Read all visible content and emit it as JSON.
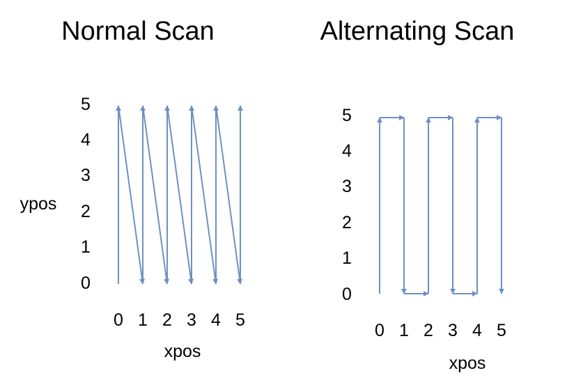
{
  "colors": {
    "arrow": "#6f90c0",
    "text": "#000000",
    "background": "#ffffff"
  },
  "panels": [
    {
      "title": "Normal Scan",
      "x_ticks": [
        "0",
        "1",
        "2",
        "3",
        "4",
        "5"
      ],
      "y_ticks": [
        "0",
        "1",
        "2",
        "3",
        "4",
        "5"
      ],
      "xlabel": "xpos",
      "ylabel": "ypos",
      "path": [
        [
          0,
          0
        ],
        [
          0,
          5
        ],
        [
          1,
          0
        ],
        [
          1,
          5
        ],
        [
          2,
          0
        ],
        [
          2,
          5
        ],
        [
          3,
          0
        ],
        [
          3,
          5
        ],
        [
          4,
          0
        ],
        [
          4,
          5
        ],
        [
          5,
          0
        ],
        [
          5,
          5
        ]
      ]
    },
    {
      "title": "Alternating Scan",
      "x_ticks": [
        "0",
        "1",
        "2",
        "3",
        "4",
        "5"
      ],
      "y_ticks": [
        "0",
        "1",
        "2",
        "3",
        "4",
        "5"
      ],
      "xlabel": "xpos",
      "path": [
        [
          0,
          0
        ],
        [
          0,
          5
        ],
        [
          1,
          5
        ],
        [
          1,
          0
        ],
        [
          2,
          0
        ],
        [
          2,
          5
        ],
        [
          3,
          5
        ],
        [
          3,
          0
        ],
        [
          4,
          0
        ],
        [
          4,
          5
        ],
        [
          5,
          5
        ],
        [
          5,
          0
        ]
      ]
    }
  ]
}
